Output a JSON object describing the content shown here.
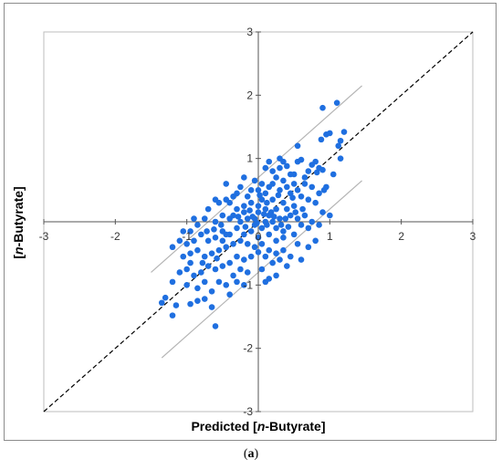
{
  "caption": {
    "open": "(",
    "letter": "a",
    "close": ")"
  },
  "chart_data": {
    "type": "scatter",
    "xlabel_parts": [
      "Predicted [",
      "n",
      "-Butyrate]"
    ],
    "ylabel_parts": [
      "[",
      "n",
      "-Butyrate]"
    ],
    "xlim": [
      -3,
      3
    ],
    "ylim": [
      -3,
      3
    ],
    "x_ticks": [
      "-3",
      "-2",
      "-1",
      "0",
      "1",
      "2",
      "3"
    ],
    "y_ticks": [
      "-3",
      "-2",
      "-1",
      "0",
      "1",
      "2",
      "3"
    ],
    "grid": false,
    "point_color": "#1f6fe0",
    "band_color": "#b4b4b4",
    "diagonal": {
      "style": "dashed",
      "color": "#000000",
      "from": [
        -3,
        -3
      ],
      "to": [
        3,
        3
      ]
    },
    "bands": [
      {
        "from": [
          -1.5,
          -0.8
        ],
        "to": [
          1.45,
          2.15
        ]
      },
      {
        "from": [
          -1.35,
          -2.15
        ],
        "to": [
          1.45,
          0.65
        ]
      }
    ],
    "points": [
      [
        1.1,
        1.88
      ],
      [
        0.9,
        1.8
      ],
      [
        1.2,
        1.42
      ],
      [
        1.0,
        1.4
      ],
      [
        0.95,
        1.38
      ],
      [
        0.88,
        1.3
      ],
      [
        1.15,
        1.28
      ],
      [
        1.12,
        1.2
      ],
      [
        0.55,
        1.2
      ],
      [
        0.6,
        0.98
      ],
      [
        0.8,
        0.95
      ],
      [
        0.75,
        0.9
      ],
      [
        0.85,
        0.85
      ],
      [
        0.9,
        0.82
      ],
      [
        0.82,
        0.78
      ],
      [
        0.7,
        0.8
      ],
      [
        1.05,
        0.75
      ],
      [
        1.15,
        1.0
      ],
      [
        0.95,
        0.55
      ],
      [
        0.92,
        0.5
      ],
      [
        0.85,
        0.45
      ],
      [
        1.0,
        0.1
      ],
      [
        0.65,
        0.6
      ],
      [
        0.4,
        0.88
      ],
      [
        0.45,
        0.75
      ],
      [
        0.3,
        0.85
      ],
      [
        0.2,
        0.8
      ],
      [
        0.25,
        0.7
      ],
      [
        0.35,
        0.65
      ],
      [
        0.5,
        0.6
      ],
      [
        0.55,
        0.5
      ],
      [
        0.6,
        0.4
      ],
      [
        0.7,
        0.35
      ],
      [
        0.45,
        0.45
      ],
      [
        0.3,
        0.5
      ],
      [
        0.15,
        0.55
      ],
      [
        0.1,
        0.45
      ],
      [
        0.2,
        0.35
      ],
      [
        0.35,
        0.3
      ],
      [
        0.4,
        0.2
      ],
      [
        0.5,
        0.25
      ],
      [
        0.25,
        0.2
      ],
      [
        0.05,
        0.6
      ],
      [
        0.0,
        0.5
      ],
      [
        -0.05,
        0.65
      ],
      [
        -0.15,
        0.4
      ],
      [
        -0.1,
        0.3
      ],
      [
        0.05,
        0.35
      ],
      [
        0.1,
        0.2
      ],
      [
        0.15,
        0.1
      ],
      [
        0.0,
        0.15
      ],
      [
        -0.05,
        0.05
      ],
      [
        0.1,
        0.0
      ],
      [
        0.2,
        0.0
      ],
      [
        0.3,
        0.05
      ],
      [
        0.45,
        0.1
      ],
      [
        0.55,
        0.05
      ],
      [
        0.6,
        -0.05
      ],
      [
        0.7,
        -0.1
      ],
      [
        0.5,
        -0.2
      ],
      [
        0.35,
        -0.15
      ],
      [
        0.25,
        -0.1
      ],
      [
        0.15,
        -0.2
      ],
      [
        0.05,
        -0.1
      ],
      [
        -0.05,
        -0.05
      ],
      [
        -0.15,
        0.05
      ],
      [
        -0.2,
        0.15
      ],
      [
        -0.3,
        0.2
      ],
      [
        -0.35,
        0.1
      ],
      [
        -0.25,
        0.0
      ],
      [
        -0.4,
        0.05
      ],
      [
        -0.5,
        0.1
      ],
      [
        -0.6,
        0.0
      ],
      [
        -0.7,
        0.2
      ],
      [
        -0.55,
        0.3
      ],
      [
        -0.45,
        0.35
      ],
      [
        -0.3,
        0.45
      ],
      [
        -0.2,
        0.25
      ],
      [
        0.0,
        -0.25
      ],
      [
        -0.1,
        -0.15
      ],
      [
        -0.2,
        -0.2
      ],
      [
        -0.3,
        -0.1
      ],
      [
        -0.4,
        -0.2
      ],
      [
        -0.5,
        -0.15
      ],
      [
        -0.6,
        -0.25
      ],
      [
        -0.7,
        -0.3
      ],
      [
        -0.8,
        -0.2
      ],
      [
        -0.9,
        -0.3
      ],
      [
        -1.0,
        -0.35
      ],
      [
        -1.1,
        -0.3
      ],
      [
        -1.2,
        -0.4
      ],
      [
        -1.05,
        -0.55
      ],
      [
        -0.95,
        -0.5
      ],
      [
        -0.85,
        -0.45
      ],
      [
        -0.75,
        -0.55
      ],
      [
        -0.65,
        -0.5
      ],
      [
        -0.55,
        -0.45
      ],
      [
        -0.45,
        -0.4
      ],
      [
        -0.35,
        -0.35
      ],
      [
        -0.25,
        -0.3
      ],
      [
        -0.15,
        -0.35
      ],
      [
        -0.05,
        -0.4
      ],
      [
        0.05,
        -0.35
      ],
      [
        0.15,
        -0.45
      ],
      [
        0.25,
        -0.5
      ],
      [
        0.35,
        -0.45
      ],
      [
        0.45,
        -0.55
      ],
      [
        0.4,
        -0.7
      ],
      [
        0.3,
        -0.6
      ],
      [
        0.2,
        -0.65
      ],
      [
        0.1,
        -0.55
      ],
      [
        -0.1,
        -0.55
      ],
      [
        -0.2,
        -0.6
      ],
      [
        -0.3,
        -0.55
      ],
      [
        -0.4,
        -0.65
      ],
      [
        -0.5,
        -0.7
      ],
      [
        -0.6,
        -0.75
      ],
      [
        -0.7,
        -0.7
      ],
      [
        -0.8,
        -0.8
      ],
      [
        -0.9,
        -0.85
      ],
      [
        -1.0,
        -0.75
      ],
      [
        -1.1,
        -0.8
      ],
      [
        -1.2,
        -0.95
      ],
      [
        -1.0,
        -1.0
      ],
      [
        -0.85,
        -1.05
      ],
      [
        -0.75,
        -0.95
      ],
      [
        -0.65,
        -1.1
      ],
      [
        -0.55,
        -0.95
      ],
      [
        -0.45,
        -1.0
      ],
      [
        -0.35,
        -0.85
      ],
      [
        -0.25,
        -0.75
      ],
      [
        -0.15,
        -0.8
      ],
      [
        0.05,
        -0.75
      ],
      [
        0.15,
        -0.9
      ],
      [
        -1.3,
        -1.2
      ],
      [
        -1.35,
        -1.28
      ],
      [
        -1.15,
        -1.32
      ],
      [
        -1.2,
        -1.48
      ],
      [
        -0.75,
        -1.22
      ],
      [
        -0.85,
        -1.25
      ],
      [
        -0.95,
        -1.3
      ],
      [
        -0.65,
        -1.35
      ],
      [
        -0.6,
        -1.65
      ],
      [
        -0.5,
        -0.3
      ],
      [
        -0.45,
        -0.2
      ],
      [
        0.65,
        0.1
      ],
      [
        0.8,
        0.3
      ],
      [
        0.9,
        0.15
      ],
      [
        0.75,
        0.55
      ],
      [
        0.3,
        1.0
      ],
      [
        0.2,
        0.6
      ],
      [
        -0.1,
        0.5
      ],
      [
        -0.45,
        0.6
      ],
      [
        -0.2,
        0.7
      ],
      [
        0.1,
        0.85
      ],
      [
        0.0,
        0.25
      ],
      [
        0.08,
        0.12
      ],
      [
        -0.02,
        -0.02
      ],
      [
        0.12,
        -0.05
      ],
      [
        -0.08,
        0.08
      ],
      [
        0.18,
        0.15
      ],
      [
        0.25,
        -0.3
      ],
      [
        0.35,
        -0.25
      ],
      [
        0.55,
        -0.35
      ],
      [
        0.7,
        -0.4
      ],
      [
        0.8,
        -0.3
      ],
      [
        0.6,
        -0.6
      ],
      [
        0.75,
        0.0
      ],
      [
        0.85,
        -0.05
      ],
      [
        -0.25,
        0.55
      ],
      [
        -0.4,
        0.3
      ],
      [
        -0.6,
        0.35
      ],
      [
        -0.75,
        0.05
      ],
      [
        -0.85,
        -0.05
      ],
      [
        -0.95,
        -0.15
      ],
      [
        -1.05,
        -0.15
      ],
      [
        -0.9,
        0.05
      ],
      [
        -0.3,
        -0.95
      ],
      [
        -0.2,
        -1.0
      ],
      [
        0.1,
        -0.95
      ],
      [
        0.25,
        -0.85
      ],
      [
        -0.4,
        -1.15
      ],
      [
        0.4,
        0.55
      ],
      [
        0.5,
        0.75
      ],
      [
        0.65,
        0.7
      ],
      [
        0.55,
        0.95
      ],
      [
        0.35,
        0.95
      ],
      [
        0.15,
        0.95
      ],
      [
        -0.35,
        0.4
      ],
      [
        0.02,
        0.42
      ],
      [
        0.28,
        0.42
      ],
      [
        0.48,
        0.38
      ],
      [
        0.62,
        0.2
      ],
      [
        0.38,
        0.05
      ],
      [
        0.22,
        0.08
      ],
      [
        -0.12,
        0.18
      ],
      [
        -0.28,
        0.08
      ],
      [
        -0.18,
        -0.08
      ],
      [
        0.32,
        -0.05
      ],
      [
        0.42,
        -0.08
      ],
      [
        -0.52,
        -0.05
      ],
      [
        -0.62,
        -0.12
      ],
      [
        -0.72,
        -0.15
      ],
      [
        0.12,
        0.3
      ],
      [
        0.0,
        -0.48
      ],
      [
        -0.58,
        -0.58
      ],
      [
        -0.78,
        -0.65
      ],
      [
        -0.95,
        -0.65
      ],
      [
        0.52,
        0.15
      ]
    ]
  }
}
